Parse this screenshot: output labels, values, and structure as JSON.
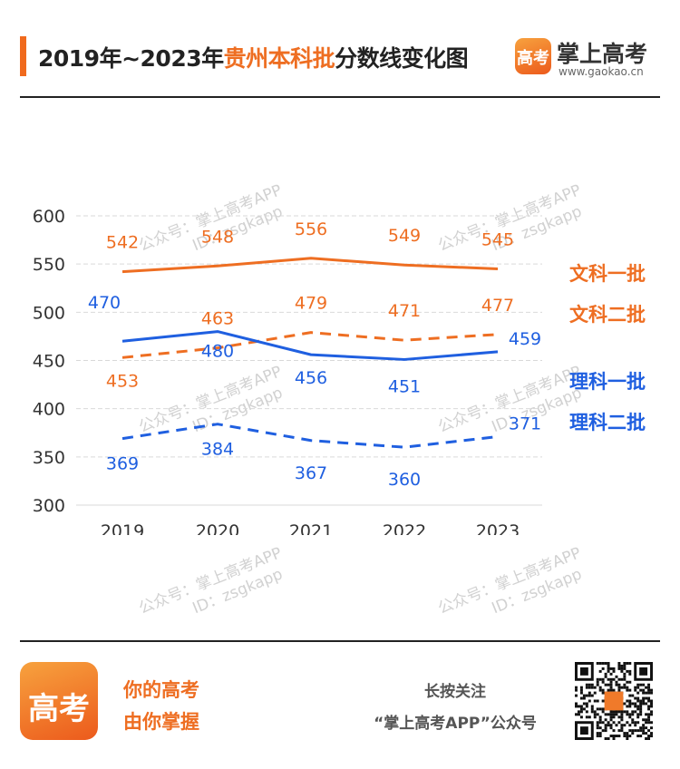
{
  "header": {
    "title_prefix": "2019年~2023年",
    "title_highlight": "贵州本科批",
    "title_suffix": "分数线变化图",
    "brand_logo_text": "高考",
    "brand_name": "掌上高考",
    "brand_url": "www.gaokao.cn"
  },
  "watermarks": {
    "line1": "公众号：掌上高考APP",
    "line2": "ID：zsgkapp"
  },
  "colors": {
    "orange": "#ee6e22",
    "blue": "#1f5fe0",
    "grid": "#d9d9d9",
    "axis_text": "#333333"
  },
  "chart_data": {
    "type": "line",
    "categories": [
      "2019",
      "2020",
      "2021",
      "2022",
      "2023"
    ],
    "ylim": [
      300,
      600
    ],
    "yticks": [
      300,
      350,
      400,
      450,
      500,
      550,
      600
    ],
    "grid": true,
    "legend_position": "right",
    "series": [
      {
        "name": "文科一批",
        "values": [
          542,
          548,
          556,
          549,
          545
        ],
        "color": "#ee6e22",
        "style": "solid"
      },
      {
        "name": "文科二批",
        "values": [
          453,
          463,
          479,
          471,
          477
        ],
        "color": "#ee6e22",
        "style": "dashed"
      },
      {
        "name": "理科一批",
        "values": [
          470,
          480,
          456,
          451,
          459
        ],
        "color": "#1f5fe0",
        "style": "solid"
      },
      {
        "name": "理科二批",
        "values": [
          369,
          384,
          367,
          360,
          371
        ],
        "color": "#1f5fe0",
        "style": "dashed"
      }
    ]
  },
  "footer": {
    "logo_text": "高考",
    "slogan_line1": "你的高考",
    "slogan_line2": "由你掌握",
    "follow_line1": "长按关注",
    "follow_line2": "“掌上高考APP”公众号",
    "qr_icon": "qr-code-icon"
  }
}
